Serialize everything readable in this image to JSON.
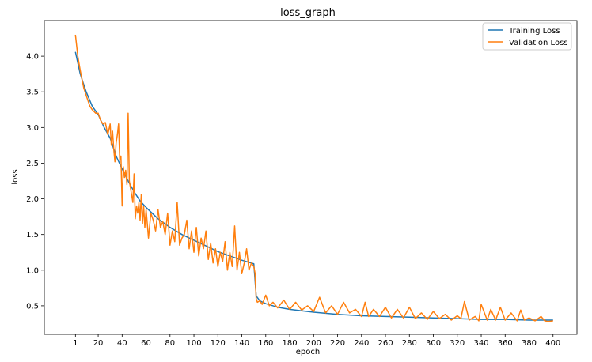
{
  "chart_data": {
    "type": "line",
    "title": "loss_graph",
    "xlabel": "epoch",
    "ylabel": "loss",
    "xlim": [
      -25,
      420
    ],
    "ylim": [
      0.1,
      4.5
    ],
    "x_ticks": [
      1,
      20,
      40,
      60,
      80,
      100,
      120,
      140,
      160,
      180,
      200,
      220,
      240,
      260,
      280,
      300,
      320,
      340,
      360,
      380,
      400
    ],
    "y_ticks": [
      0.5,
      1.0,
      1.5,
      2.0,
      2.5,
      3.0,
      3.5,
      4.0
    ],
    "y_tick_labels": [
      "0.5",
      "1.0",
      "1.5",
      "2.0",
      "2.5",
      "3.0",
      "3.5",
      "4.0"
    ],
    "grid": false,
    "legend_position": "top-right",
    "series": [
      {
        "name": "Training Loss",
        "color": "#1f77b4",
        "x": [
          1,
          5,
          10,
          15,
          20,
          25,
          30,
          35,
          40,
          45,
          50,
          55,
          60,
          70,
          80,
          90,
          100,
          110,
          120,
          130,
          140,
          150,
          152,
          155,
          160,
          170,
          180,
          190,
          200,
          220,
          240,
          260,
          280,
          300,
          320,
          340,
          360,
          380,
          400
        ],
        "values": [
          4.06,
          3.75,
          3.5,
          3.3,
          3.18,
          3.0,
          2.85,
          2.6,
          2.42,
          2.25,
          2.1,
          1.97,
          1.88,
          1.72,
          1.6,
          1.5,
          1.42,
          1.34,
          1.26,
          1.2,
          1.14,
          1.09,
          0.64,
          0.57,
          0.53,
          0.48,
          0.45,
          0.43,
          0.41,
          0.38,
          0.36,
          0.35,
          0.34,
          0.33,
          0.32,
          0.31,
          0.31,
          0.3,
          0.3
        ]
      },
      {
        "name": "Validation Loss",
        "color": "#ff7f0e",
        "x": [
          1,
          3,
          5,
          8,
          10,
          13,
          15,
          18,
          20,
          22,
          24,
          26,
          28,
          30,
          31,
          32,
          33,
          34,
          35,
          36,
          37,
          38,
          39,
          40,
          41,
          42,
          43,
          44,
          45,
          46,
          47,
          48,
          49,
          50,
          51,
          52,
          53,
          54,
          55,
          56,
          57,
          58,
          59,
          60,
          62,
          64,
          66,
          68,
          70,
          72,
          74,
          76,
          78,
          80,
          82,
          84,
          86,
          88,
          90,
          92,
          94,
          96,
          98,
          100,
          102,
          104,
          106,
          108,
          110,
          112,
          114,
          116,
          118,
          120,
          122,
          124,
          126,
          128,
          130,
          132,
          134,
          136,
          138,
          140,
          142,
          144,
          146,
          148,
          150,
          151,
          152,
          153,
          155,
          157,
          160,
          163,
          166,
          170,
          175,
          180,
          185,
          190,
          195,
          200,
          205,
          210,
          215,
          220,
          225,
          230,
          235,
          240,
          243,
          246,
          250,
          255,
          260,
          265,
          270,
          275,
          280,
          285,
          290,
          295,
          300,
          305,
          310,
          315,
          320,
          323,
          326,
          330,
          335,
          338,
          340,
          345,
          348,
          352,
          356,
          360,
          365,
          370,
          373,
          376,
          380,
          385,
          390,
          393,
          396,
          400
        ],
        "values": [
          4.3,
          4.0,
          3.8,
          3.55,
          3.45,
          3.3,
          3.25,
          3.2,
          3.2,
          3.1,
          3.05,
          3.07,
          2.9,
          3.05,
          2.75,
          2.95,
          2.7,
          2.52,
          2.78,
          2.9,
          3.05,
          2.55,
          2.6,
          1.9,
          2.45,
          2.3,
          2.4,
          2.2,
          3.2,
          2.25,
          2.15,
          2.05,
          1.95,
          2.35,
          1.72,
          1.9,
          1.8,
          1.95,
          1.7,
          2.06,
          1.65,
          1.9,
          1.6,
          1.85,
          1.45,
          1.8,
          1.7,
          1.55,
          1.85,
          1.6,
          1.68,
          1.5,
          1.8,
          1.35,
          1.55,
          1.4,
          1.95,
          1.35,
          1.45,
          1.5,
          1.7,
          1.3,
          1.55,
          1.25,
          1.6,
          1.2,
          1.45,
          1.3,
          1.55,
          1.15,
          1.38,
          1.1,
          1.3,
          1.05,
          1.25,
          1.12,
          1.4,
          1.0,
          1.25,
          1.05,
          1.62,
          1.0,
          1.25,
          0.95,
          1.1,
          1.3,
          1.0,
          1.1,
          1.05,
          0.96,
          0.6,
          0.55,
          0.57,
          0.52,
          0.65,
          0.5,
          0.55,
          0.47,
          0.58,
          0.45,
          0.55,
          0.44,
          0.5,
          0.42,
          0.62,
          0.4,
          0.5,
          0.38,
          0.55,
          0.4,
          0.45,
          0.35,
          0.55,
          0.35,
          0.45,
          0.35,
          0.48,
          0.33,
          0.45,
          0.33,
          0.48,
          0.32,
          0.4,
          0.31,
          0.42,
          0.32,
          0.38,
          0.3,
          0.36,
          0.32,
          0.56,
          0.3,
          0.35,
          0.29,
          0.52,
          0.3,
          0.45,
          0.3,
          0.48,
          0.3,
          0.4,
          0.29,
          0.44,
          0.3,
          0.33,
          0.29,
          0.35,
          0.29,
          0.28,
          0.29
        ]
      }
    ]
  }
}
